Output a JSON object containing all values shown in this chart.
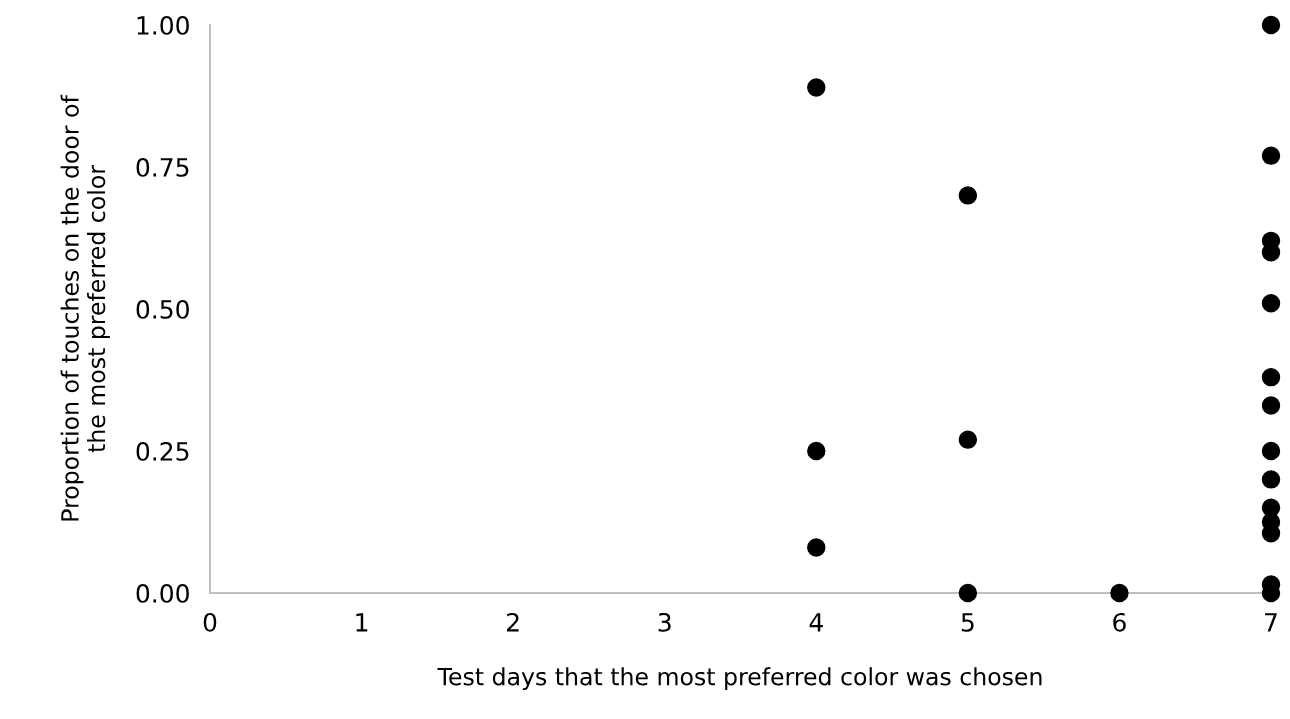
{
  "chart_data": {
    "type": "scatter",
    "xlabel": "Test days that the most preferred color was chosen",
    "ylabel": "Proportion of touches on the door of\nthe most preferred color",
    "series": [
      {
        "color": "#000000",
        "x": [
          4,
          4,
          4,
          5,
          5,
          5,
          6,
          7,
          7,
          7,
          7,
          7,
          7,
          7,
          7,
          7,
          7,
          7,
          7,
          7,
          7
        ],
        "values": [
          0.89,
          0.25,
          0.08,
          0.7,
          0.27,
          0.0,
          0.0,
          1.0,
          0.77,
          0.62,
          0.6,
          0.51,
          0.38,
          0.33,
          0.25,
          0.2,
          0.15,
          0.125,
          0.105,
          0.015,
          0.0
        ]
      }
    ],
    "xlim": [
      0,
      7
    ],
    "xticks": [
      0,
      1,
      2,
      3,
      4,
      5,
      6,
      7
    ],
    "ylim": [
      0,
      1
    ],
    "yticks": [
      {
        "value": 0,
        "label": "0.00"
      },
      {
        "value": 0.25,
        "label": "0.25"
      },
      {
        "value": 0.5,
        "label": "0.50"
      },
      {
        "value": 0.75,
        "label": "0.75"
      },
      {
        "value": 1,
        "label": "1.00"
      }
    ],
    "marker": "circle",
    "grid": false,
    "legend": false
  }
}
